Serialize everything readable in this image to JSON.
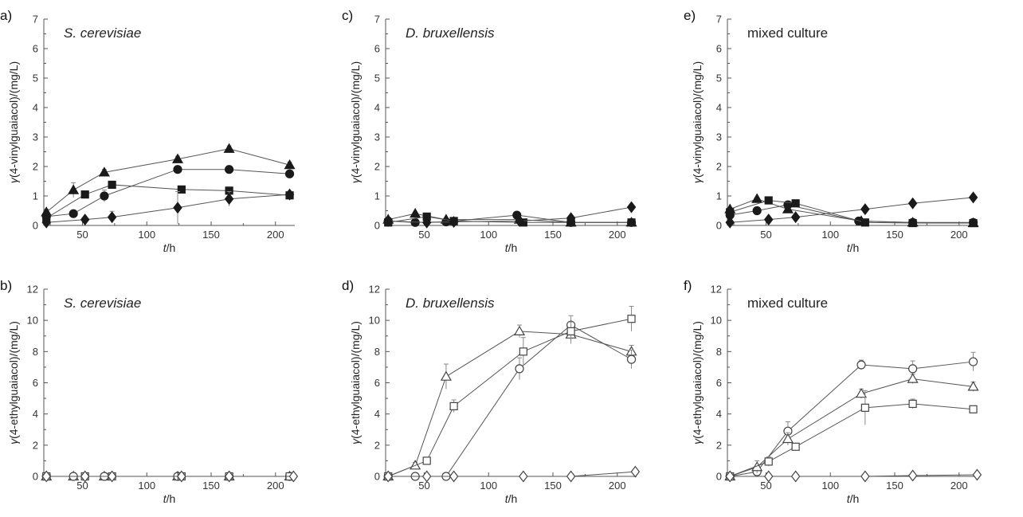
{
  "colors": {
    "axis": "#555555",
    "line": "#555555",
    "marker_filled": "#1a1a1a",
    "marker_open_fill": "#ffffff",
    "marker_open_stroke": "#444444",
    "errorbar": "#888888"
  },
  "x_label": {
    "var": "t",
    "unit": "/h"
  },
  "chart_data": [
    {
      "panel": "a)",
      "title": "S. cerevisiae",
      "title_italic": true,
      "type": "line",
      "ylabel": {
        "var": "γ",
        "text": "(4-vinylguaiacol)/(mg/L)"
      },
      "xlim": [
        20,
        215
      ],
      "ylim": [
        0,
        7
      ],
      "xticks": [
        50,
        100,
        150,
        200
      ],
      "yticks": [
        0,
        1,
        2,
        3,
        4,
        5,
        6,
        7
      ],
      "marker_fill": "filled",
      "series": [
        {
          "marker": "triangle",
          "x": [
            22,
            43,
            67,
            124,
            164,
            211
          ],
          "y": [
            0.45,
            1.2,
            1.8,
            2.25,
            2.6,
            2.05
          ],
          "err": [
            0.1,
            0.25,
            0.1,
            0.1,
            0.1,
            0.1
          ]
        },
        {
          "marker": "circle",
          "x": [
            22,
            43,
            67,
            124,
            164,
            211
          ],
          "y": [
            0.3,
            0.4,
            1.0,
            1.9,
            1.9,
            1.75
          ],
          "err": [
            0.05,
            0.05,
            0.2,
            0.1,
            0.1,
            0.1
          ]
        },
        {
          "marker": "square",
          "x": [
            22,
            52,
            73,
            127,
            164,
            211
          ],
          "y": [
            0.25,
            1.05,
            1.38,
            1.22,
            1.18,
            1.02
          ],
          "err": [
            0.05,
            0.05,
            0.05,
            0.05,
            0.05,
            0.05
          ]
        },
        {
          "marker": "diamond",
          "x": [
            22,
            52,
            73,
            124,
            164,
            211
          ],
          "y": [
            0.1,
            0.2,
            0.28,
            0.6,
            0.9,
            1.05
          ],
          "err": [
            0.05,
            0.05,
            0.2,
            0.55,
            0.25,
            0.1
          ]
        }
      ]
    },
    {
      "panel": "b)",
      "title": "S. cerevisiae",
      "title_italic": true,
      "type": "line",
      "ylabel": {
        "var": "γ",
        "text": "(4-ethylguaiacol)/(mg/L)"
      },
      "xlim": [
        20,
        215
      ],
      "ylim": [
        0,
        12
      ],
      "xticks": [
        50,
        100,
        150,
        200
      ],
      "yticks": [
        0,
        2,
        4,
        6,
        8,
        10,
        12
      ],
      "marker_fill": "open",
      "series": [
        {
          "marker": "triangle",
          "x": [
            22,
            43,
            67,
            124,
            164,
            211
          ],
          "y": [
            0,
            0,
            0,
            0,
            0,
            0
          ],
          "err": [
            0,
            0,
            0,
            0,
            0,
            0
          ]
        },
        {
          "marker": "circle",
          "x": [
            22,
            43,
            67,
            124,
            164,
            211
          ],
          "y": [
            0,
            0,
            0,
            0,
            0,
            0
          ],
          "err": [
            0,
            0,
            0,
            0,
            0,
            0
          ]
        },
        {
          "marker": "square",
          "x": [
            22,
            52,
            73,
            127,
            164,
            211
          ],
          "y": [
            0,
            0,
            0,
            0,
            0,
            0
          ],
          "err": [
            0,
            0,
            0,
            0,
            0,
            0
          ]
        },
        {
          "marker": "diamond",
          "x": [
            22,
            52,
            73,
            127,
            164,
            214
          ],
          "y": [
            0,
            0,
            0,
            0,
            0,
            0
          ],
          "err": [
            0,
            0,
            0,
            0,
            0,
            0
          ]
        }
      ]
    },
    {
      "panel": "c)",
      "title": "D. bruxellensis",
      "title_italic": true,
      "type": "line",
      "ylabel": {
        "var": "γ",
        "text": "(4-vinylguaiacol)/(mg/L)"
      },
      "xlim": [
        20,
        215
      ],
      "ylim": [
        0,
        7
      ],
      "xticks": [
        50,
        100,
        150,
        200
      ],
      "yticks": [
        0,
        1,
        2,
        3,
        4,
        5,
        6,
        7
      ],
      "marker_fill": "filled",
      "series": [
        {
          "marker": "triangle",
          "x": [
            22,
            43,
            67,
            124,
            164,
            211
          ],
          "y": [
            0.2,
            0.4,
            0.2,
            0.2,
            0.1,
            0.1
          ],
          "err": [
            0.05,
            0.05,
            0.05,
            0.05,
            0.05,
            0.05
          ]
        },
        {
          "marker": "circle",
          "x": [
            22,
            43,
            67,
            122,
            164,
            211
          ],
          "y": [
            0.15,
            0.1,
            0.12,
            0.35,
            0.1,
            0.1
          ],
          "err": [
            0.05,
            0.05,
            0.05,
            0.05,
            0.05,
            0.05
          ]
        },
        {
          "marker": "square",
          "x": [
            22,
            52,
            73,
            127,
            164,
            211
          ],
          "y": [
            0.1,
            0.3,
            0.15,
            0.1,
            0.1,
            0.1
          ],
          "err": [
            0.05,
            0.05,
            0.05,
            0.05,
            0.05,
            0.05
          ]
        },
        {
          "marker": "diamond",
          "x": [
            22,
            52,
            73,
            124,
            164,
            211
          ],
          "y": [
            0.15,
            0.1,
            0.12,
            0.15,
            0.25,
            0.62
          ],
          "err": [
            0.05,
            0.05,
            0.05,
            0.05,
            0.05,
            0.05
          ]
        }
      ]
    },
    {
      "panel": "d)",
      "title": "D. bruxellensis",
      "title_italic": true,
      "type": "line",
      "ylabel": {
        "var": "γ",
        "text": "(4-ethylguaiacol)/(mg/L)"
      },
      "xlim": [
        20,
        215
      ],
      "ylim": [
        0,
        12
      ],
      "xticks": [
        50,
        100,
        150,
        200
      ],
      "yticks": [
        0,
        2,
        4,
        6,
        8,
        10,
        12
      ],
      "marker_fill": "open",
      "series": [
        {
          "marker": "triangle",
          "x": [
            22,
            43,
            67,
            124,
            164,
            211
          ],
          "y": [
            0,
            0.7,
            6.4,
            9.3,
            9.1,
            8.0
          ],
          "err": [
            0.1,
            0.2,
            0.8,
            0.4,
            0.6,
            0.4
          ]
        },
        {
          "marker": "circle",
          "x": [
            22,
            43,
            67,
            124,
            164,
            211
          ],
          "y": [
            0,
            0,
            0,
            6.9,
            9.7,
            7.5
          ],
          "err": [
            0.1,
            0.1,
            0.1,
            0.7,
            0.6,
            0.6
          ]
        },
        {
          "marker": "square",
          "x": [
            22,
            52,
            73,
            127,
            164,
            211
          ],
          "y": [
            0,
            1.0,
            4.5,
            8.0,
            9.3,
            10.1
          ],
          "err": [
            0.1,
            0.1,
            0.4,
            0.9,
            0.6,
            0.8
          ]
        },
        {
          "marker": "diamond",
          "x": [
            22,
            52,
            73,
            127,
            164,
            214
          ],
          "y": [
            0,
            0,
            0,
            0,
            0,
            0.3
          ],
          "err": [
            0.05,
            0.05,
            0.05,
            0.05,
            0.05,
            0.05
          ]
        }
      ]
    },
    {
      "panel": "e)",
      "title": "mixed culture",
      "title_italic": false,
      "type": "line",
      "ylabel": {
        "var": "γ",
        "text": "(4-vinylguaiacol)/(mg/L)"
      },
      "xlim": [
        20,
        215
      ],
      "ylim": [
        0,
        7
      ],
      "xticks": [
        50,
        100,
        150,
        200
      ],
      "yticks": [
        0,
        1,
        2,
        3,
        4,
        5,
        6,
        7
      ],
      "marker_fill": "filled",
      "series": [
        {
          "marker": "triangle",
          "x": [
            22,
            43,
            67,
            124,
            164,
            211
          ],
          "y": [
            0.55,
            0.9,
            0.55,
            0.15,
            0.1,
            0.08
          ],
          "err": [
            0.05,
            0.05,
            0.05,
            0.05,
            0.05,
            0.05
          ]
        },
        {
          "marker": "circle",
          "x": [
            22,
            43,
            67,
            122,
            164,
            211
          ],
          "y": [
            0.35,
            0.5,
            0.7,
            0.15,
            0.1,
            0.1
          ],
          "err": [
            0.05,
            0.05,
            0.05,
            0.05,
            0.05,
            0.05
          ]
        },
        {
          "marker": "square",
          "x": [
            22,
            52,
            73,
            127,
            164,
            211
          ],
          "y": [
            0.45,
            0.85,
            0.75,
            0.1,
            0.08,
            0.08
          ],
          "err": [
            0.05,
            0.05,
            0.05,
            0.05,
            0.05,
            0.05
          ]
        },
        {
          "marker": "diamond",
          "x": [
            22,
            52,
            73,
            127,
            164,
            211
          ],
          "y": [
            0.1,
            0.2,
            0.28,
            0.55,
            0.75,
            0.95
          ],
          "err": [
            0.05,
            0.05,
            0.05,
            0.05,
            0.05,
            0.05
          ]
        }
      ]
    },
    {
      "panel": "f)",
      "title": "mixed culture",
      "title_italic": false,
      "type": "line",
      "ylabel": {
        "var": "γ",
        "text": "(4-ethylguaiacol)/(mg/L)"
      },
      "xlim": [
        20,
        215
      ],
      "ylim": [
        0,
        12
      ],
      "xticks": [
        50,
        100,
        150,
        200
      ],
      "yticks": [
        0,
        2,
        4,
        6,
        8,
        10,
        12
      ],
      "marker_fill": "open",
      "series": [
        {
          "marker": "circle",
          "x": [
            22,
            43,
            67,
            124,
            164,
            211
          ],
          "y": [
            0,
            0.3,
            2.9,
            7.15,
            6.9,
            7.35
          ],
          "err": [
            0.1,
            0.4,
            0.6,
            0.3,
            0.5,
            0.6
          ]
        },
        {
          "marker": "triangle",
          "x": [
            22,
            43,
            67,
            124,
            164,
            211
          ],
          "y": [
            0,
            0.6,
            2.4,
            5.3,
            6.25,
            5.75
          ],
          "err": [
            0.1,
            0.4,
            0.4,
            0.3,
            0.3,
            0.3
          ]
        },
        {
          "marker": "square",
          "x": [
            22,
            52,
            73,
            127,
            164,
            211
          ],
          "y": [
            0,
            0.95,
            1.9,
            4.4,
            4.65,
            4.3
          ],
          "err": [
            0.1,
            0.3,
            0.2,
            1.1,
            0.3,
            0.2
          ]
        },
        {
          "marker": "diamond",
          "x": [
            22,
            52,
            73,
            127,
            164,
            214
          ],
          "y": [
            0,
            0,
            0,
            0,
            0.05,
            0.1
          ],
          "err": [
            0.05,
            0.05,
            0.05,
            0.05,
            0.05,
            0.05
          ]
        }
      ]
    }
  ]
}
